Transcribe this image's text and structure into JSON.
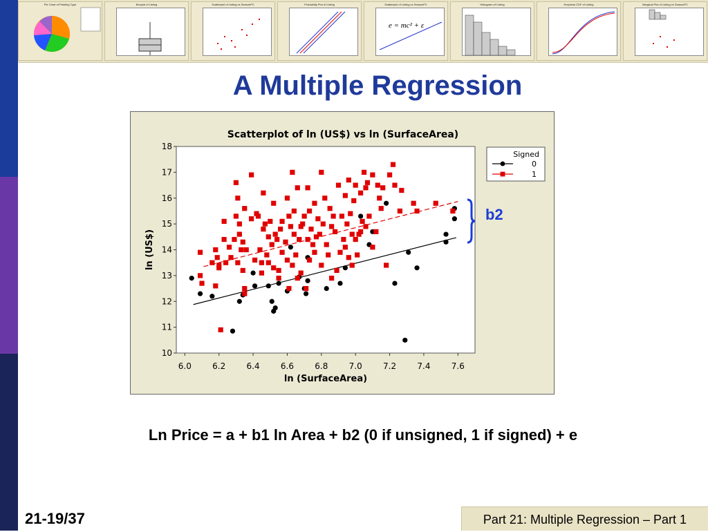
{
  "slide": {
    "title": "A Multiple Regression",
    "equation": "Ln Price = a + b1 ln Area + b2 (0 if unsigned, 1 if signed) + e",
    "annotation": "b2",
    "slide_number": "21-19/37",
    "footer": "Part 21: Multiple Regression – Part 1"
  },
  "colors": {
    "title": "#1f3a9a",
    "unsigned_series": "#000000",
    "signed_series": "#e00000",
    "brace": "#1a3cd6",
    "plot_background": "#ece9d3",
    "banner": "#e9e3c6"
  },
  "thumbnails": [
    {
      "title": "Pie Chart of Painting Type",
      "kind": "pie"
    },
    {
      "title": "Boxplot of Listing",
      "kind": "box"
    },
    {
      "title": "Scatterplot of Listing vs SeasonPC",
      "kind": "scatter"
    },
    {
      "title": "Probability Plot of Listing",
      "kind": "prob"
    },
    {
      "title": "Scatterplot of Listing vs SeasonPC",
      "kind": "emc"
    },
    {
      "title": "Histogram of Listing",
      "kind": "hist"
    },
    {
      "title": "Empirical CDF of Listing",
      "kind": "cdf"
    },
    {
      "title": "Marginal Plot of Listing vs SeasonPC",
      "kind": "marginal"
    }
  ],
  "chart_data": {
    "type": "scatter",
    "title": "Scatterplot of ln (US$) vs ln (SurfaceArea)",
    "xlabel": "ln (SurfaceArea)",
    "ylabel": "ln (US$)",
    "xlim": [
      5.95,
      7.7
    ],
    "ylim": [
      10,
      18
    ],
    "xticks": [
      "6.0",
      "6.2",
      "6.4",
      "6.6",
      "6.8",
      "7.0",
      "7.2",
      "7.4",
      "7.6"
    ],
    "yticks": [
      "10",
      "11",
      "12",
      "13",
      "14",
      "15",
      "16",
      "17",
      "18"
    ],
    "grid": false,
    "legend": {
      "title": "Signed",
      "position": "top-right"
    },
    "series": [
      {
        "name": "0",
        "marker": "circle",
        "color": "#000000",
        "fit_line": {
          "x": [
            6.05,
            7.59
          ],
          "y": [
            11.88,
            14.47
          ],
          "style": "solid"
        },
        "points": [
          [
            6.04,
            12.9
          ],
          [
            6.09,
            12.3
          ],
          [
            6.16,
            12.2
          ],
          [
            6.28,
            10.85
          ],
          [
            6.32,
            12.0
          ],
          [
            6.34,
            12.25
          ],
          [
            6.4,
            13.1
          ],
          [
            6.41,
            12.6
          ],
          [
            6.45,
            13.5
          ],
          [
            6.49,
            12.6
          ],
          [
            6.51,
            12.0
          ],
          [
            6.52,
            11.62
          ],
          [
            6.53,
            11.75
          ],
          [
            6.55,
            12.7
          ],
          [
            6.6,
            12.4
          ],
          [
            6.62,
            14.1
          ],
          [
            6.67,
            12.95
          ],
          [
            6.7,
            12.5
          ],
          [
            6.71,
            12.3
          ],
          [
            6.72,
            13.7
          ],
          [
            6.72,
            12.8
          ],
          [
            6.83,
            12.5
          ],
          [
            6.91,
            12.7
          ],
          [
            6.94,
            13.3
          ],
          [
            7.03,
            15.3
          ],
          [
            7.08,
            14.2
          ],
          [
            7.1,
            14.7
          ],
          [
            7.18,
            15.8
          ],
          [
            7.23,
            12.7
          ],
          [
            7.29,
            10.5
          ],
          [
            7.31,
            13.9
          ],
          [
            7.36,
            13.3
          ],
          [
            7.53,
            14.6
          ],
          [
            7.53,
            14.3
          ],
          [
            7.58,
            15.6
          ],
          [
            7.58,
            15.2
          ]
        ]
      },
      {
        "name": "1",
        "marker": "square",
        "color": "#e00000",
        "fit_line": {
          "x": [
            6.11,
            7.6
          ],
          "y": [
            13.35,
            15.87
          ],
          "style": "dashed"
        },
        "points": [
          [
            6.09,
            13.0
          ],
          [
            6.09,
            13.9
          ],
          [
            6.1,
            12.7
          ],
          [
            6.16,
            13.5
          ],
          [
            6.18,
            12.6
          ],
          [
            6.18,
            14.0
          ],
          [
            6.19,
            13.7
          ],
          [
            6.2,
            13.3
          ],
          [
            6.2,
            13.4
          ],
          [
            6.21,
            10.9
          ],
          [
            6.23,
            14.4
          ],
          [
            6.23,
            15.1
          ],
          [
            6.24,
            13.5
          ],
          [
            6.26,
            14.1
          ],
          [
            6.27,
            13.7
          ],
          [
            6.29,
            14.4
          ],
          [
            6.3,
            16.6
          ],
          [
            6.3,
            15.3
          ],
          [
            6.31,
            13.5
          ],
          [
            6.31,
            16.0
          ],
          [
            6.32,
            14.6
          ],
          [
            6.32,
            15.0
          ],
          [
            6.33,
            14.0
          ],
          [
            6.34,
            13.2
          ],
          [
            6.34,
            14.3
          ],
          [
            6.35,
            12.5
          ],
          [
            6.35,
            15.6
          ],
          [
            6.35,
            12.3
          ],
          [
            6.36,
            14.0
          ],
          [
            6.39,
            16.9
          ],
          [
            6.39,
            15.2
          ],
          [
            6.41,
            13.6
          ],
          [
            6.42,
            15.4
          ],
          [
            6.43,
            15.3
          ],
          [
            6.44,
            14.0
          ],
          [
            6.45,
            13.5
          ],
          [
            6.45,
            13.1
          ],
          [
            6.46,
            16.2
          ],
          [
            6.46,
            14.8
          ],
          [
            6.47,
            15.0
          ],
          [
            6.48,
            13.8
          ],
          [
            6.49,
            14.5
          ],
          [
            6.49,
            13.5
          ],
          [
            6.5,
            15.1
          ],
          [
            6.51,
            14.2
          ],
          [
            6.52,
            13.3
          ],
          [
            6.52,
            15.8
          ],
          [
            6.53,
            14.6
          ],
          [
            6.54,
            14.4
          ],
          [
            6.55,
            13.2
          ],
          [
            6.55,
            12.9
          ],
          [
            6.56,
            14.8
          ],
          [
            6.57,
            15.1
          ],
          [
            6.57,
            13.9
          ],
          [
            6.59,
            14.3
          ],
          [
            6.6,
            16.0
          ],
          [
            6.6,
            13.6
          ],
          [
            6.61,
            12.5
          ],
          [
            6.61,
            15.3
          ],
          [
            6.62,
            14.9
          ],
          [
            6.63,
            13.4
          ],
          [
            6.63,
            17.0
          ],
          [
            6.64,
            14.6
          ],
          [
            6.64,
            15.5
          ],
          [
            6.65,
            13.8
          ],
          [
            6.66,
            12.9
          ],
          [
            6.66,
            16.4
          ],
          [
            6.67,
            14.4
          ],
          [
            6.68,
            14.9
          ],
          [
            6.68,
            13.1
          ],
          [
            6.69,
            15.0
          ],
          [
            6.7,
            15.3
          ],
          [
            6.71,
            12.5
          ],
          [
            6.72,
            14.4
          ],
          [
            6.72,
            16.4
          ],
          [
            6.73,
            15.5
          ],
          [
            6.73,
            13.6
          ],
          [
            6.74,
            14.8
          ],
          [
            6.75,
            14.2
          ],
          [
            6.76,
            15.8
          ],
          [
            6.76,
            13.9
          ],
          [
            6.77,
            14.5
          ],
          [
            6.78,
            15.2
          ],
          [
            6.79,
            14.6
          ],
          [
            6.8,
            13.4
          ],
          [
            6.8,
            17.0
          ],
          [
            6.81,
            15.0
          ],
          [
            6.82,
            16.0
          ],
          [
            6.83,
            14.2
          ],
          [
            6.84,
            13.8
          ],
          [
            6.85,
            15.6
          ],
          [
            6.86,
            14.9
          ],
          [
            6.86,
            12.9
          ],
          [
            6.87,
            15.3
          ],
          [
            6.88,
            14.7
          ],
          [
            6.89,
            13.2
          ],
          [
            6.9,
            16.5
          ],
          [
            6.91,
            13.9
          ],
          [
            6.92,
            15.3
          ],
          [
            6.93,
            14.4
          ],
          [
            6.94,
            14.1
          ],
          [
            6.94,
            16.1
          ],
          [
            6.95,
            15.0
          ],
          [
            6.96,
            13.7
          ],
          [
            6.96,
            16.7
          ],
          [
            6.97,
            15.4
          ],
          [
            6.98,
            14.6
          ],
          [
            6.98,
            13.4
          ],
          [
            6.99,
            15.9
          ],
          [
            7.0,
            14.4
          ],
          [
            7.0,
            16.5
          ],
          [
            7.01,
            13.8
          ],
          [
            7.02,
            14.6
          ],
          [
            7.03,
            16.2
          ],
          [
            7.03,
            14.7
          ],
          [
            7.04,
            15.1
          ],
          [
            7.05,
            17.0
          ],
          [
            7.06,
            16.4
          ],
          [
            7.06,
            14.9
          ],
          [
            7.07,
            16.6
          ],
          [
            7.08,
            15.3
          ],
          [
            7.1,
            14.1
          ],
          [
            7.1,
            16.9
          ],
          [
            7.12,
            14.7
          ],
          [
            7.13,
            16.5
          ],
          [
            7.14,
            16.0
          ],
          [
            7.15,
            15.6
          ],
          [
            7.16,
            16.4
          ],
          [
            7.18,
            13.4
          ],
          [
            7.2,
            16.9
          ],
          [
            7.22,
            17.3
          ],
          [
            7.23,
            16.5
          ],
          [
            7.26,
            15.5
          ],
          [
            7.27,
            16.3
          ],
          [
            7.34,
            15.8
          ],
          [
            7.36,
            15.5
          ],
          [
            7.47,
            15.8
          ],
          [
            7.57,
            15.5
          ]
        ]
      }
    ]
  }
}
